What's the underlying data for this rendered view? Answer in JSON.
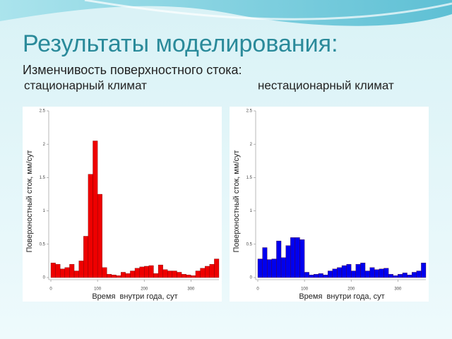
{
  "slide": {
    "title": "Результаты моделирования:",
    "subtitle": "Изменчивость поверхностного стока:"
  },
  "chart_data": [
    {
      "type": "histogram",
      "title": "стационарный климат",
      "x_label": "Время  внутри года, сут",
      "y_label": "Поверхностный сток, мм/сут",
      "color": "#ee0000",
      "bins": [
        0,
        10,
        20,
        30,
        40,
        50,
        60,
        70,
        80,
        90,
        100,
        110,
        120,
        130,
        140,
        150,
        160,
        170,
        180,
        190,
        200,
        210,
        220,
        230,
        240,
        250,
        260,
        270,
        280,
        290,
        300,
        310,
        320,
        330,
        340,
        350,
        360
      ],
      "values": [
        0.22,
        0.2,
        0.13,
        0.15,
        0.2,
        0.1,
        0.25,
        0.62,
        1.55,
        2.05,
        1.25,
        0.15,
        0.05,
        0.04,
        0.03,
        0.08,
        0.06,
        0.1,
        0.14,
        0.16,
        0.17,
        0.18,
        0.06,
        0.19,
        0.12,
        0.1,
        0.1,
        0.08,
        0.05,
        0.04,
        0.03,
        0.1,
        0.14,
        0.17,
        0.2,
        0.28
      ],
      "xlim": [
        0,
        360
      ],
      "ylim": [
        0,
        2.5
      ],
      "xticks": [
        0,
        100,
        200,
        300
      ],
      "yticks": [
        0,
        0.5,
        1,
        1.5,
        2,
        2.5
      ]
    },
    {
      "type": "histogram",
      "title": "нестационарный климат",
      "x_label": "Время  внутри года, сут",
      "y_label": "Поверхностный сток, мм/сут",
      "color": "#0000ee",
      "bins": [
        0,
        10,
        20,
        30,
        40,
        50,
        60,
        70,
        80,
        90,
        100,
        110,
        120,
        130,
        140,
        150,
        160,
        170,
        180,
        190,
        200,
        210,
        220,
        230,
        240,
        250,
        260,
        270,
        280,
        290,
        300,
        310,
        320,
        330,
        340,
        350,
        360
      ],
      "values": [
        0.28,
        0.45,
        0.27,
        0.28,
        0.55,
        0.3,
        0.48,
        0.6,
        0.6,
        0.57,
        0.08,
        0.04,
        0.05,
        0.06,
        0.04,
        0.1,
        0.13,
        0.15,
        0.18,
        0.2,
        0.1,
        0.2,
        0.22,
        0.1,
        0.15,
        0.12,
        0.13,
        0.14,
        0.05,
        0.03,
        0.05,
        0.07,
        0.04,
        0.08,
        0.1,
        0.22
      ],
      "xlim": [
        0,
        360
      ],
      "ylim": [
        0,
        2.5
      ],
      "xticks": [
        0,
        100,
        200,
        300
      ],
      "yticks": [
        0,
        0.5,
        1,
        1.5,
        2,
        2.5
      ]
    }
  ]
}
